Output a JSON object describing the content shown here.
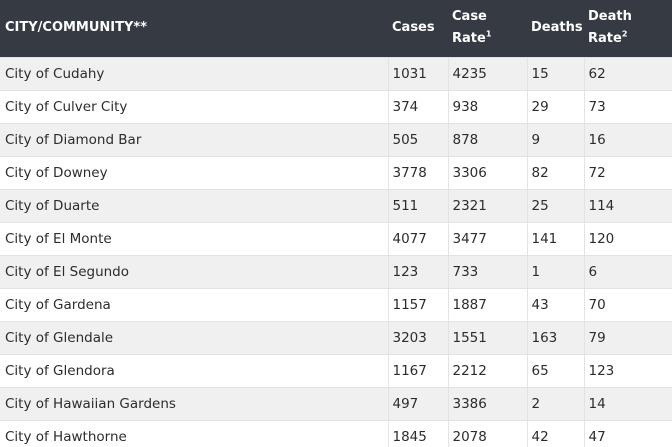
{
  "header": {
    "city": "CITY/COMMUNITY**",
    "cases": "Cases",
    "case_rate": "Case Rate",
    "case_rate_sup": "1",
    "deaths": "Deaths",
    "death_rate": "Death Rate",
    "death_rate_sup": "2"
  },
  "rows": [
    {
      "city": "City of Cudahy",
      "cases": "1031",
      "case_rate": "4235",
      "deaths": "15",
      "death_rate": "62"
    },
    {
      "city": "City of Culver City",
      "cases": "374",
      "case_rate": "938",
      "deaths": "29",
      "death_rate": "73"
    },
    {
      "city": "City of Diamond Bar",
      "cases": "505",
      "case_rate": "878",
      "deaths": "9",
      "death_rate": "16"
    },
    {
      "city": "City of Downey",
      "cases": "3778",
      "case_rate": "3306",
      "deaths": "82",
      "death_rate": "72"
    },
    {
      "city": "City of Duarte",
      "cases": "511",
      "case_rate": "2321",
      "deaths": "25",
      "death_rate": "114"
    },
    {
      "city": "City of El Monte",
      "cases": "4077",
      "case_rate": "3477",
      "deaths": "141",
      "death_rate": "120"
    },
    {
      "city": "City of El Segundo",
      "cases": "123",
      "case_rate": "733",
      "deaths": "1",
      "death_rate": "6"
    },
    {
      "city": "City of Gardena",
      "cases": "1157",
      "case_rate": "1887",
      "deaths": "43",
      "death_rate": "70"
    },
    {
      "city": "City of Glendale",
      "cases": "3203",
      "case_rate": "1551",
      "deaths": "163",
      "death_rate": "79"
    },
    {
      "city": "City of Glendora",
      "cases": "1167",
      "case_rate": "2212",
      "deaths": "65",
      "death_rate": "123"
    },
    {
      "city": "City of Hawaiian Gardens",
      "cases": "497",
      "case_rate": "3386",
      "deaths": "2",
      "death_rate": "14"
    },
    {
      "city": "City of Hawthorne",
      "cases": "1845",
      "case_rate": "2078",
      "deaths": "42",
      "death_rate": "47"
    }
  ]
}
